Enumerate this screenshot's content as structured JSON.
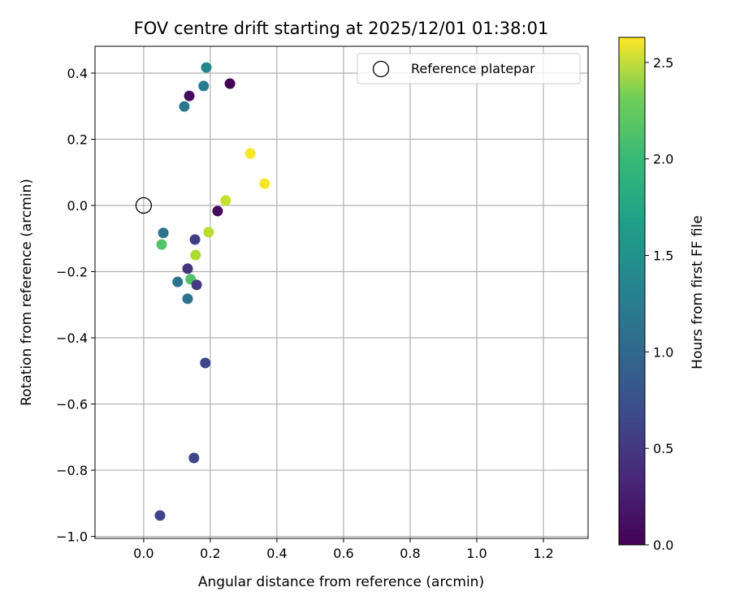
{
  "chart_data": {
    "type": "scatter",
    "title": "FOV centre drift starting at 2025/12/01 01:38:01",
    "xlabel": "Angular distance from reference (arcmin)",
    "ylabel": "Rotation from reference (arcmin)",
    "xlim": [
      -0.146,
      1.334
    ],
    "ylim": [
      -1.006,
      0.481
    ],
    "grid": true,
    "xticks": [
      0.0,
      0.2,
      0.4,
      0.6,
      0.8,
      1.0,
      1.2
    ],
    "xtick_labels": [
      "0.0",
      "0.2",
      "0.4",
      "0.6",
      "0.8",
      "1.0",
      "1.2"
    ],
    "yticks": [
      0.4,
      0.2,
      0.0,
      -0.2,
      -0.4,
      -0.6,
      -0.8,
      -1.0
    ],
    "ytick_labels": [
      "0.4",
      "0.2",
      "0.0",
      "−0.2",
      "−0.4",
      "−0.6",
      "−0.8",
      "−1.0"
    ],
    "legend": {
      "placement": "top-right",
      "entries": [
        "Reference platepar"
      ]
    },
    "reference_point": {
      "x": 0.0,
      "y": 0.0
    },
    "colorbar": {
      "label": "Hours from first FF file",
      "range": [
        0.0,
        2.63
      ],
      "ticks": [
        0.0,
        0.5,
        1.0,
        1.5,
        2.0,
        2.5
      ],
      "tick_labels": [
        "0.0",
        "0.5",
        "1.0",
        "1.5",
        "2.0",
        "2.5"
      ],
      "colormap": "viridis"
    },
    "points": [
      {
        "x": 0.188,
        "y": 0.417,
        "hours": 1.2
      },
      {
        "x": 0.259,
        "y": 0.368,
        "hours": 0.0
      },
      {
        "x": 0.18,
        "y": 0.361,
        "hours": 1.1
      },
      {
        "x": 0.137,
        "y": 0.331,
        "hours": 0.1
      },
      {
        "x": 0.122,
        "y": 0.299,
        "hours": 1.05
      },
      {
        "x": 0.32,
        "y": 0.157,
        "hours": 2.6
      },
      {
        "x": 0.363,
        "y": 0.066,
        "hours": 2.6
      },
      {
        "x": 0.246,
        "y": 0.015,
        "hours": 2.4
      },
      {
        "x": 0.222,
        "y": -0.017,
        "hours": 0.05
      },
      {
        "x": 0.059,
        "y": -0.083,
        "hours": 1.0
      },
      {
        "x": 0.195,
        "y": -0.081,
        "hours": 2.35
      },
      {
        "x": 0.054,
        "y": -0.118,
        "hours": 1.9
      },
      {
        "x": 0.154,
        "y": -0.103,
        "hours": 0.5
      },
      {
        "x": 0.156,
        "y": -0.15,
        "hours": 2.3
      },
      {
        "x": 0.132,
        "y": -0.191,
        "hours": 0.4
      },
      {
        "x": 0.102,
        "y": -0.231,
        "hours": 1.0
      },
      {
        "x": 0.141,
        "y": -0.223,
        "hours": 1.9
      },
      {
        "x": 0.159,
        "y": -0.24,
        "hours": 0.45
      },
      {
        "x": 0.132,
        "y": -0.282,
        "hours": 1.0
      },
      {
        "x": 0.185,
        "y": -0.476,
        "hours": 0.55
      },
      {
        "x": 0.151,
        "y": -0.763,
        "hours": 0.55
      },
      {
        "x": 0.049,
        "y": -0.937,
        "hours": 0.55
      }
    ]
  }
}
